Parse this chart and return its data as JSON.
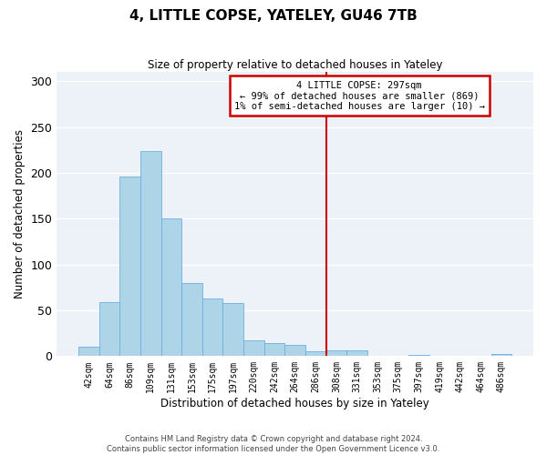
{
  "title": "4, LITTLE COPSE, YATELEY, GU46 7TB",
  "subtitle": "Size of property relative to detached houses in Yateley",
  "xlabel": "Distribution of detached houses by size in Yateley",
  "ylabel": "Number of detached properties",
  "bar_labels": [
    "42sqm",
    "64sqm",
    "86sqm",
    "109sqm",
    "131sqm",
    "153sqm",
    "175sqm",
    "197sqm",
    "220sqm",
    "242sqm",
    "264sqm",
    "286sqm",
    "308sqm",
    "331sqm",
    "353sqm",
    "375sqm",
    "397sqm",
    "419sqm",
    "442sqm",
    "464sqm",
    "486sqm"
  ],
  "bar_values": [
    10,
    59,
    196,
    224,
    150,
    80,
    63,
    58,
    17,
    14,
    12,
    5,
    6,
    6,
    0,
    0,
    1,
    0,
    0,
    0,
    2
  ],
  "bar_color": "#aed4e8",
  "bar_edge_color": "#6aafe0",
  "vline_color": "#cc0000",
  "annotation_title": "4 LITTLE COPSE: 297sqm",
  "annotation_line1": "← 99% of detached houses are smaller (869)",
  "annotation_line2": "1% of semi-detached houses are larger (10) →",
  "annotation_box_color": "#ffffff",
  "annotation_box_edge": "#cc0000",
  "ylim": [
    0,
    310
  ],
  "yticks": [
    0,
    50,
    100,
    150,
    200,
    250,
    300
  ],
  "bg_color": "#edf2f8",
  "footer_line1": "Contains HM Land Registry data © Crown copyright and database right 2024.",
  "footer_line2": "Contains public sector information licensed under the Open Government Licence v3.0."
}
